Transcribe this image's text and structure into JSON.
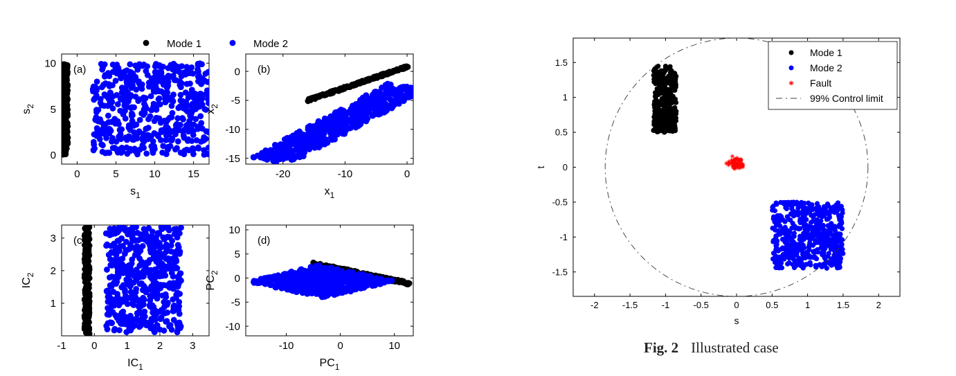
{
  "left_legend": {
    "entries": [
      {
        "label": "Mode 1",
        "color": "#000000"
      },
      {
        "label": "Mode 2",
        "color": "#0000ff"
      }
    ]
  },
  "caption": {
    "label": "Fig.  2",
    "text": "Illustrated case"
  },
  "chart_data": [
    {
      "type": "scatter",
      "panel_label": "(a)",
      "xlabel": "s",
      "xlabel_sub": "1",
      "ylabel": "s",
      "ylabel_sub": "2",
      "xlim": [
        -2,
        17
      ],
      "ylim": [
        -1,
        11
      ],
      "xticks": [
        0,
        5,
        10,
        15
      ],
      "yticks": [
        0,
        5,
        10
      ],
      "series": [
        {
          "name": "Mode 1",
          "color": "#000000",
          "region": {
            "kind": "rect",
            "x": [
              -1.9,
              -1.2
            ],
            "y": [
              0,
              10
            ]
          },
          "n": 220
        },
        {
          "name": "Mode 2",
          "color": "#0000ff",
          "region": {
            "kind": "rect",
            "x": [
              2,
              17
            ],
            "y": [
              0,
              10
            ]
          },
          "n": 520
        }
      ]
    },
    {
      "type": "scatter",
      "panel_label": "(b)",
      "xlabel": "x",
      "xlabel_sub": "1",
      "ylabel": "x",
      "ylabel_sub": "2",
      "xlim": [
        -26,
        1
      ],
      "ylim": [
        -16,
        3
      ],
      "xticks": [
        -20,
        -10,
        0
      ],
      "yticks": [
        -15,
        -10,
        -5,
        0
      ],
      "series": [
        {
          "name": "Mode 1",
          "color": "#000000",
          "region": {
            "kind": "line",
            "from": [
              -16,
              -5
            ],
            "to": [
              0.5,
              1
            ],
            "width": 0.35
          },
          "n": 160
        },
        {
          "name": "Mode 2",
          "color": "#0000ff",
          "region": {
            "kind": "para",
            "origin": [
              -25,
              -14.8
            ],
            "u": [
              22,
              12.8
            ],
            "v": [
              6,
              -1.2
            ]
          },
          "n": 520
        }
      ]
    },
    {
      "type": "scatter",
      "panel_label": "(c)",
      "xlabel": "IC",
      "xlabel_sub": "1",
      "ylabel": "IC",
      "ylabel_sub": "2",
      "xlim": [
        -1,
        3.5
      ],
      "ylim": [
        0,
        3.4
      ],
      "xticks": [
        -1,
        0,
        1,
        2,
        3
      ],
      "yticks": [
        1,
        2,
        3
      ],
      "series": [
        {
          "name": "Mode 1",
          "color": "#000000",
          "region": {
            "kind": "rect",
            "x": [
              -0.3,
              -0.15
            ],
            "y": [
              0.05,
              3.35
            ]
          },
          "n": 220
        },
        {
          "name": "Mode 2",
          "color": "#0000ff",
          "region": {
            "kind": "rect",
            "x": [
              0.35,
              2.65
            ],
            "y": [
              0.1,
              3.35
            ]
          },
          "n": 520
        }
      ]
    },
    {
      "type": "scatter",
      "panel_label": "(d)",
      "xlabel": "PC",
      "xlabel_sub": "1",
      "ylabel": "PC",
      "ylabel_sub": "2",
      "xlim": [
        -17.5,
        13.5
      ],
      "ylim": [
        -12,
        11
      ],
      "xticks": [
        -10,
        0,
        10
      ],
      "yticks": [
        -10,
        -5,
        0,
        5,
        10
      ],
      "series": [
        {
          "name": "Mode 1",
          "color": "#000000",
          "region": {
            "kind": "line",
            "from": [
              -5,
              3
            ],
            "to": [
              13,
              -1.2
            ],
            "width": 0.5
          },
          "n": 160
        },
        {
          "name": "Mode 2",
          "color": "#0000ff",
          "region": {
            "kind": "para",
            "origin": [
              -17,
              -0.8
            ],
            "u": [
              13,
              3.5
            ],
            "v": [
              14,
              -3.3
            ]
          },
          "n": 620
        }
      ]
    },
    {
      "type": "scatter",
      "panel_label": "",
      "xlabel": "s",
      "ylabel": "t",
      "xlim": [
        -2.3,
        2.3
      ],
      "ylim": [
        -1.85,
        1.85
      ],
      "xticks": [
        -2,
        -1.5,
        -1,
        -0.5,
        0,
        0.5,
        1,
        1.5,
        2
      ],
      "yticks": [
        -1.5,
        -1,
        -0.5,
        0,
        0.5,
        1,
        1.5
      ],
      "legend": {
        "position": "top-right",
        "entries": [
          {
            "label": "Mode 1",
            "color": "#000000",
            "marker": "dot"
          },
          {
            "label": "Mode 2",
            "color": "#0000ff",
            "marker": "dot"
          },
          {
            "label": "Fault",
            "color": "#ff0000",
            "marker": "star"
          },
          {
            "label": "99% Control limit",
            "color": "#000000",
            "marker": "dash"
          }
        ]
      },
      "series": [
        {
          "name": "Mode 1",
          "color": "#000000",
          "region": {
            "kind": "rect",
            "x": [
              -1.17,
              -0.85
            ],
            "y": [
              0.5,
              1.45
            ]
          },
          "n": 330
        },
        {
          "name": "Mode 2",
          "color": "#0000ff",
          "region": {
            "kind": "rect",
            "x": [
              0.5,
              1.5
            ],
            "y": [
              -1.45,
              -0.5
            ]
          },
          "n": 560
        },
        {
          "name": "Fault",
          "color": "#ff0000",
          "marker": "star",
          "region": {
            "kind": "cluster",
            "center": [
              0,
              0.05
            ],
            "spread": [
              0.11,
              0.09
            ]
          },
          "n": 55
        },
        {
          "name": "99% Control limit",
          "color": "#000000",
          "kind": "ellipse",
          "center": [
            0,
            0
          ],
          "radius": [
            1.85,
            1.85
          ]
        }
      ]
    }
  ]
}
